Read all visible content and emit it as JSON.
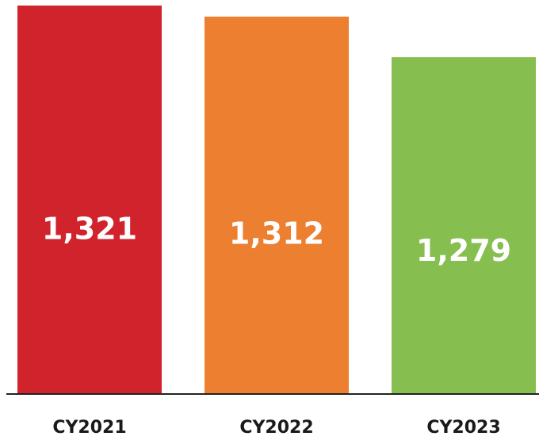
{
  "chart_data": {
    "type": "bar",
    "categories": [
      "CY2021",
      "CY2022",
      "CY2023"
    ],
    "values": [
      1321,
      1312,
      1279
    ],
    "value_labels": [
      "1,321",
      "1,312",
      "1,279"
    ],
    "colors": [
      "#d0232b",
      "#ed7f31",
      "#86bf50"
    ],
    "ylim": [
      1005,
      1321
    ]
  }
}
